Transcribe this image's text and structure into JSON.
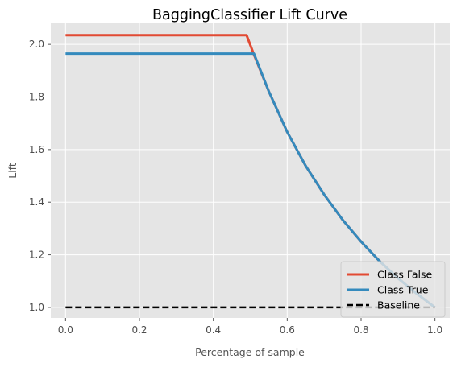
{
  "chart_data": {
    "type": "line",
    "title": "BaggingClassifier Lift Curve",
    "xlabel": "Percentage of sample",
    "ylabel": "Lift",
    "xlim": [
      -0.04,
      1.04
    ],
    "ylim": [
      0.96,
      2.08
    ],
    "xticks": [
      0.0,
      0.2,
      0.4,
      0.6,
      0.8,
      1.0
    ],
    "xtick_labels": [
      "0.0",
      "0.2",
      "0.4",
      "0.6",
      "0.8",
      "1.0"
    ],
    "yticks": [
      1.0,
      1.2,
      1.4,
      1.6,
      1.8,
      2.0
    ],
    "ytick_labels": [
      "1.0",
      "1.2",
      "1.4",
      "1.6",
      "1.8",
      "2.0"
    ],
    "grid": true,
    "legend_position": "lower-right",
    "series": [
      {
        "name": "Class False",
        "color": "#E24A33",
        "style": "solid",
        "x": [
          0.0,
          0.49,
          0.51,
          0.55,
          0.6,
          0.65,
          0.7,
          0.75,
          0.8,
          0.85,
          0.9,
          0.95,
          1.0
        ],
        "y": [
          2.035,
          2.035,
          1.961,
          1.822,
          1.667,
          1.538,
          1.429,
          1.333,
          1.25,
          1.176,
          1.111,
          1.053,
          1.0
        ]
      },
      {
        "name": "Class True",
        "color": "#348ABD",
        "style": "solid",
        "x": [
          0.0,
          0.51,
          0.55,
          0.6,
          0.65,
          0.7,
          0.75,
          0.8,
          0.85,
          0.9,
          0.95,
          1.0
        ],
        "y": [
          1.965,
          1.965,
          1.822,
          1.667,
          1.538,
          1.429,
          1.333,
          1.25,
          1.176,
          1.111,
          1.053,
          1.0
        ]
      },
      {
        "name": "Baseline",
        "color": "#000000",
        "style": "dashed",
        "x": [
          0.0,
          1.0
        ],
        "y": [
          1.0,
          1.0
        ]
      }
    ],
    "background_color": "#E5E5E5",
    "grid_color": "#FFFFFF"
  }
}
